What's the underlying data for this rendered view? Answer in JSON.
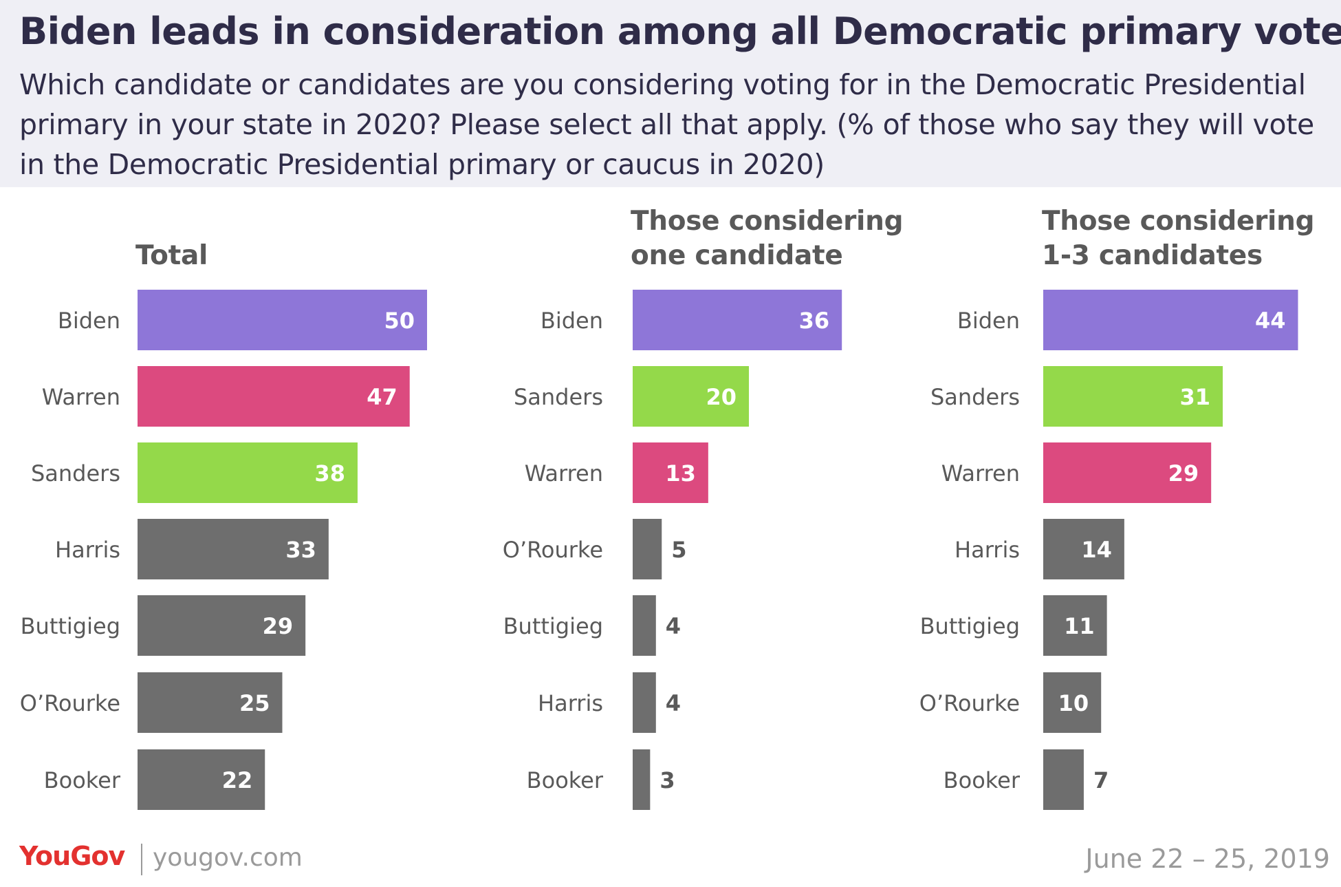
{
  "title": "Biden leads in consideration among all Democratic primary voters",
  "subtitle": "Which candidate or candidates are you considering voting for in the Democratic Presidential primary in your state in 2020? Please select all that apply. (% of those who say they will vote in the Democratic Presidential primary or caucus in 2020)",
  "footer": {
    "logo": "YouGov",
    "url": "yougov.com",
    "date": "June 22 – 25, 2019"
  },
  "colors": {
    "Biden": "#8e76d8",
    "Warren": "#dc4a7f",
    "Sanders": "#94d94a",
    "other": "#6e6e6e",
    "header_bg": "#efeff5",
    "title_text": "#2f2c48"
  },
  "chart_data": [
    {
      "type": "bar",
      "orientation": "horizontal",
      "title": "Total",
      "categories": [
        "Biden",
        "Warren",
        "Sanders",
        "Harris",
        "Buttigieg",
        "O’Rourke",
        "Booker"
      ],
      "values": [
        50,
        47,
        38,
        33,
        29,
        25,
        22
      ]
    },
    {
      "type": "bar",
      "orientation": "horizontal",
      "title": "Those considering one candidate",
      "categories": [
        "Biden",
        "Sanders",
        "Warren",
        "O’Rourke",
        "Buttigieg",
        "Harris",
        "Booker"
      ],
      "values": [
        36,
        20,
        13,
        5,
        4,
        4,
        3
      ]
    },
    {
      "type": "bar",
      "orientation": "horizontal",
      "title": "Those considering 1-3 candidates",
      "categories": [
        "Biden",
        "Sanders",
        "Warren",
        "Harris",
        "Buttigieg",
        "O’Rourke",
        "Booker"
      ],
      "values": [
        44,
        31,
        29,
        14,
        11,
        10,
        7
      ]
    }
  ]
}
